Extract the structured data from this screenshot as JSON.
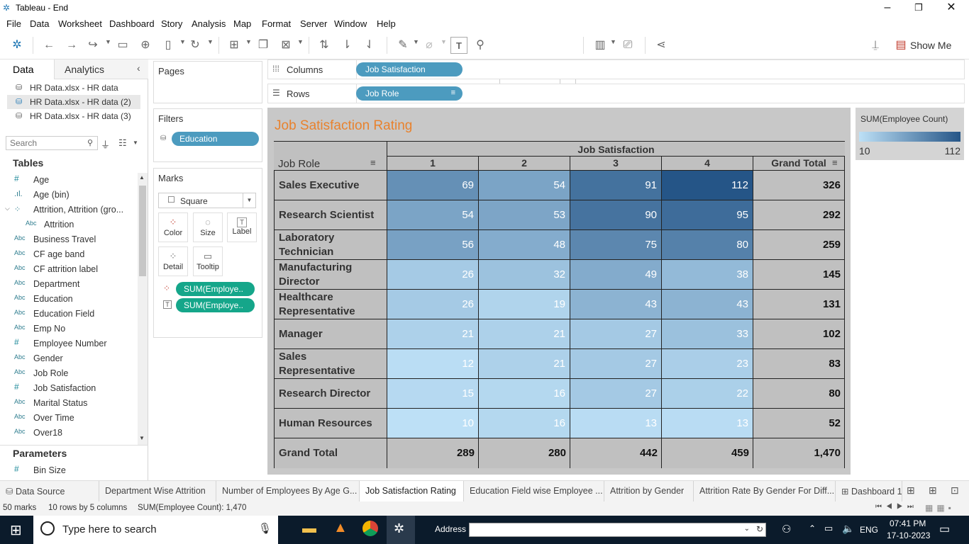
{
  "window": {
    "title": "Tableau - End"
  },
  "menu": [
    "File",
    "Data",
    "Worksheet",
    "Dashboard",
    "Story",
    "Analysis",
    "Map",
    "Format",
    "Server",
    "Window",
    "Help"
  ],
  "toolbar": {
    "view_mode": "Entire View",
    "show_me": "Show Me"
  },
  "data_pane": {
    "tab_data": "Data",
    "tab_analytics": "Analytics",
    "sources": [
      "HR Data.xlsx - HR data",
      "HR Data.xlsx - HR data (2)",
      "HR Data.xlsx - HR data (3)"
    ],
    "search_placeholder": "Search",
    "tables_heading": "Tables",
    "fields": [
      {
        "type": "#",
        "name": "Age"
      },
      {
        "type": "bin",
        "name": "Age (bin)"
      },
      {
        "type": "group",
        "name": "Attrition, Attrition (gro..."
      },
      {
        "type": "Abc",
        "name": "Attrition"
      },
      {
        "type": "Abc",
        "name": "Business Travel"
      },
      {
        "type": "Abc",
        "name": "CF age band"
      },
      {
        "type": "Abc",
        "name": "CF attrition label"
      },
      {
        "type": "Abc",
        "name": "Department"
      },
      {
        "type": "Abc",
        "name": "Education"
      },
      {
        "type": "Abc",
        "name": "Education Field"
      },
      {
        "type": "Abc",
        "name": "Emp No"
      },
      {
        "type": "#",
        "name": "Employee Number"
      },
      {
        "type": "Abc",
        "name": "Gender"
      },
      {
        "type": "Abc",
        "name": "Job Role"
      },
      {
        "type": "#",
        "name": "Job Satisfaction"
      },
      {
        "type": "Abc",
        "name": "Marital Status"
      },
      {
        "type": "Abc",
        "name": "Over Time"
      },
      {
        "type": "Abc",
        "name": "Over18"
      }
    ],
    "parameters_heading": "Parameters",
    "parameters": [
      {
        "type": "#",
        "name": "Bin Size"
      }
    ]
  },
  "cards": {
    "pages": "Pages",
    "filters": "Filters",
    "filter_pill": "Education",
    "marks": "Marks",
    "mark_type": "Square",
    "mark_buttons": [
      "Color",
      "Size",
      "Label",
      "Detail",
      "Tooltip"
    ],
    "mark_pills": [
      "SUM(Employe..",
      "SUM(Employe.."
    ]
  },
  "shelves": {
    "columns_label": "Columns",
    "columns_pill": "Job Satisfaction",
    "rows_label": "Rows",
    "rows_pill": "Job Role"
  },
  "viz": {
    "title": "Job Satisfaction Rating",
    "col_group_header": "Job Satisfaction",
    "row_header": "Job Role",
    "columns": [
      "1",
      "2",
      "3",
      "4",
      "Grand Total"
    ],
    "rows": [
      {
        "role": "Sales Executive",
        "values": [
          "69",
          "54",
          "91",
          "112"
        ],
        "total": "326"
      },
      {
        "role": "Research Scientist",
        "values": [
          "54",
          "53",
          "90",
          "95"
        ],
        "total": "292"
      },
      {
        "role": "Laboratory Technician",
        "values": [
          "56",
          "48",
          "75",
          "80"
        ],
        "total": "259"
      },
      {
        "role": "Manufacturing Director",
        "values": [
          "26",
          "32",
          "49",
          "38"
        ],
        "total": "145"
      },
      {
        "role": "Healthcare Representative",
        "values": [
          "26",
          "19",
          "43",
          "43"
        ],
        "total": "131"
      },
      {
        "role": "Manager",
        "values": [
          "21",
          "21",
          "27",
          "33"
        ],
        "total": "102"
      },
      {
        "role": "Sales Representative",
        "values": [
          "12",
          "21",
          "27",
          "23"
        ],
        "total": "83"
      },
      {
        "role": "Research Director",
        "values": [
          "15",
          "16",
          "27",
          "22"
        ],
        "total": "80"
      },
      {
        "role": "Human Resources",
        "values": [
          "10",
          "16",
          "13",
          "13"
        ],
        "total": "52"
      }
    ],
    "grand_total_label": "Grand Total",
    "grand_totals": [
      "289",
      "280",
      "442",
      "459",
      "1,470"
    ],
    "color_min_hex": "#bde0f6",
    "color_max_hex": "#255587"
  },
  "legend": {
    "title": "SUM(Employee Count)",
    "min": "10",
    "max": "112"
  },
  "sheet_tabs": [
    "Data Source",
    "Department Wise Attrition",
    "Number of Employees By Age G...",
    "Job Satisfaction Rating",
    "Education Field wise Employee ...",
    "Attrition by Gender",
    "Attrition Rate By Gender For Diff...",
    "Dashboard 1"
  ],
  "active_sheet": "Job Satisfaction Rating",
  "status": {
    "marks": "50 marks",
    "dims": "10 rows by 5 columns",
    "sum": "SUM(Employee Count): 1,470"
  },
  "taskbar": {
    "search_placeholder": "Type here to search",
    "address_label": "Address",
    "lang": "ENG",
    "time": "07:41 PM",
    "date": "17-10-2023"
  }
}
